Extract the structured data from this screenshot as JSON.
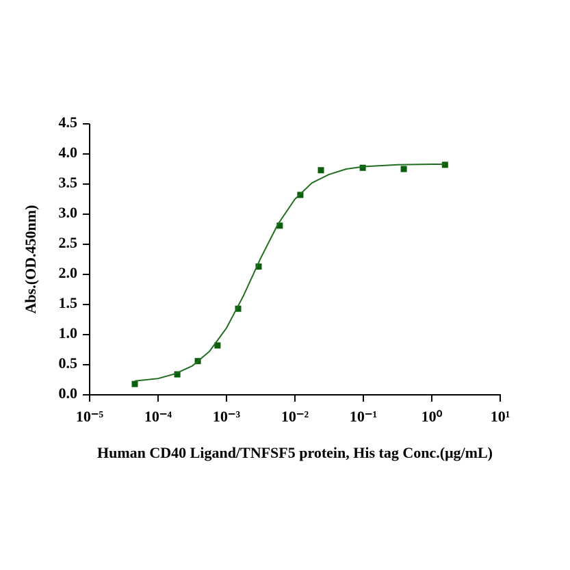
{
  "chart_data": {
    "type": "scatter",
    "xlabel": "Human CD40 Ligand/TNFSF5 protein, His tag  Conc.(μg/mL)",
    "ylabel": "Abs.(OD.450nm)",
    "xscale": "log",
    "xlim": [
      1e-05,
      10
    ],
    "xticks": [
      {
        "value": 1e-05,
        "label": "10⁻⁵"
      },
      {
        "value": 0.0001,
        "label": "10⁻⁴"
      },
      {
        "value": 0.001,
        "label": "10⁻³"
      },
      {
        "value": 0.01,
        "label": "10⁻²"
      },
      {
        "value": 0.1,
        "label": "10⁻¹"
      },
      {
        "value": 1,
        "label": "10⁰"
      },
      {
        "value": 10,
        "label": "10¹"
      }
    ],
    "ylim": [
      0,
      4.5
    ],
    "yticks": [
      {
        "value": 0,
        "label": "0.0"
      },
      0.5,
      {
        "value": 1,
        "label": "1.0"
      },
      1.5,
      {
        "value": 2,
        "label": "2.0"
      },
      2.5,
      {
        "value": 3,
        "label": "3.0"
      },
      3.5,
      {
        "value": 4,
        "label": "4.0"
      },
      4.5
    ],
    "series": [
      {
        "color": "#0b5e0b",
        "style": "markers",
        "x": [
          4.57e-05,
          0.000191,
          0.000381,
          0.00074,
          0.00148,
          0.00295,
          0.006,
          0.012,
          0.024,
          0.098,
          0.39,
          1.56
        ],
        "values": [
          0.18,
          0.34,
          0.56,
          0.82,
          1.43,
          2.13,
          2.81,
          3.32,
          3.73,
          3.77,
          3.75,
          3.82
        ]
      },
      {
        "color": "#1f6e1f",
        "style": "line",
        "x": [
          4.57e-05,
          0.0001,
          0.000178,
          0.000316,
          0.000562,
          0.001,
          0.00178,
          0.00316,
          0.00562,
          0.01,
          0.0178,
          0.0316,
          0.0562,
          0.1,
          0.316,
          1,
          1.58
        ],
        "values": [
          0.23,
          0.27,
          0.35,
          0.48,
          0.72,
          1.11,
          1.65,
          2.27,
          2.83,
          3.25,
          3.52,
          3.66,
          3.75,
          3.79,
          3.82,
          3.83,
          3.83
        ]
      }
    ]
  }
}
